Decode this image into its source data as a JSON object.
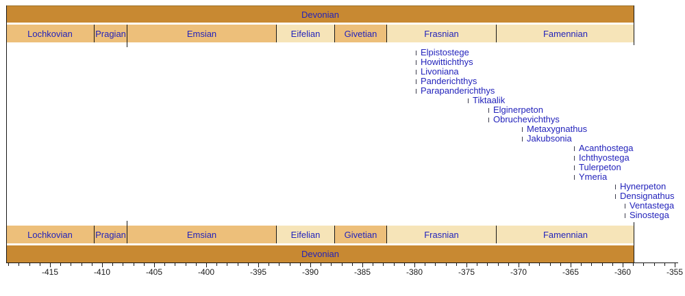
{
  "chart_data": {
    "type": "timeline",
    "period": {
      "name": "Devonian",
      "start": -419.2,
      "end": -358.9
    },
    "stages": [
      {
        "name": "Lochkovian",
        "start": -419.2,
        "end": -410.8,
        "shade": "tan"
      },
      {
        "name": "Pragian",
        "start": -410.8,
        "end": -407.6,
        "shade": "tan"
      },
      {
        "name": "Emsian",
        "start": -407.6,
        "end": -393.3,
        "shade": "tan"
      },
      {
        "name": "Eifelian",
        "start": -393.3,
        "end": -387.7,
        "shade": "cream"
      },
      {
        "name": "Givetian",
        "start": -387.7,
        "end": -382.7,
        "shade": "tan"
      },
      {
        "name": "Frasnian",
        "start": -382.7,
        "end": -372.2,
        "shade": "cream"
      },
      {
        "name": "Famennian",
        "start": -372.2,
        "end": -358.9,
        "shade": "cream"
      }
    ],
    "taxa": [
      {
        "name": "Elpistostege",
        "age": -379.9
      },
      {
        "name": "Howittichthys",
        "age": -379.9
      },
      {
        "name": "Livoniana",
        "age": -379.9
      },
      {
        "name": "Panderichthys",
        "age": -379.9
      },
      {
        "name": "Parapanderichthys",
        "age": -379.9
      },
      {
        "name": "Tiktaalik",
        "age": -374.9
      },
      {
        "name": "Elginerpeton",
        "age": -372.9
      },
      {
        "name": "Obruchevichthys",
        "age": -372.9
      },
      {
        "name": "Metaxygnathus",
        "age": -369.7
      },
      {
        "name": "Jakubsonia",
        "age": -369.7
      },
      {
        "name": "Acanthostega",
        "age": -364.7
      },
      {
        "name": "Ichthyostega",
        "age": -364.7
      },
      {
        "name": "Tulerpeton",
        "age": -364.7
      },
      {
        "name": "Ymeria",
        "age": -364.7
      },
      {
        "name": "Hynerpeton",
        "age": -360.7
      },
      {
        "name": "Densignathus",
        "age": -360.7
      },
      {
        "name": "Ventastega",
        "age": -359.8
      },
      {
        "name": "Sinostega",
        "age": -359.8
      }
    ],
    "axis": {
      "tick_start": -419,
      "tick_end": -355,
      "minor_step": 1,
      "major_step": 5,
      "major_tick_labels": [
        "-415",
        "-410",
        "-405",
        "-400",
        "-395",
        "-390",
        "-385",
        "-380",
        "-375",
        "-370",
        "-365",
        "-360",
        "-355"
      ]
    },
    "colors": {
      "period": "#C88932",
      "tan": "#EDBF7A",
      "cream": "#F6E4B8",
      "label_blue": "#2222BB",
      "tick_mark": "#3A3A4A",
      "axis_text": "#1A1A1A",
      "line": "#141414"
    }
  }
}
